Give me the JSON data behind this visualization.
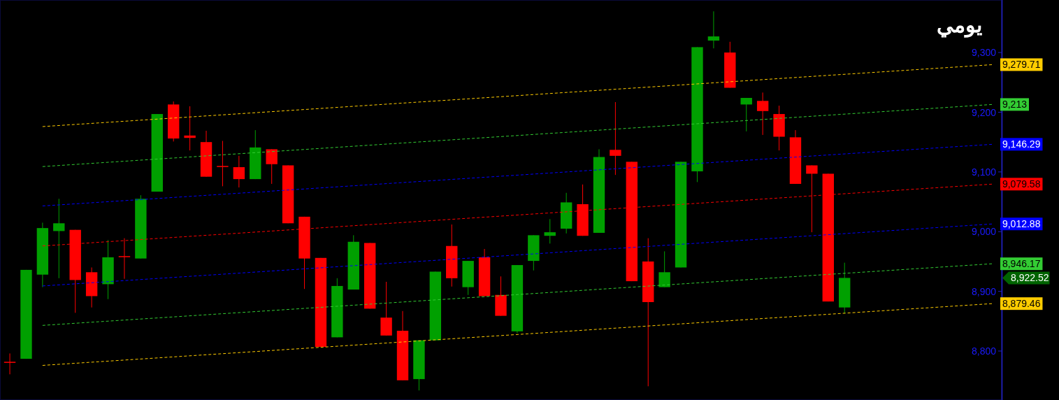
{
  "chart_data": {
    "type": "candlestick",
    "title": "يومي",
    "categories": [
      null,
      null,
      null,
      null,
      null,
      null,
      null,
      null,
      null,
      null,
      null,
      null,
      null,
      null,
      null,
      null,
      null,
      null,
      null,
      null,
      null,
      null,
      null,
      null,
      null,
      null,
      null,
      null,
      null,
      null,
      null,
      null,
      null,
      null,
      null,
      null,
      null,
      null,
      null,
      null,
      null,
      null,
      null,
      null,
      null,
      null,
      null,
      null,
      null,
      null,
      null,
      null,
      null,
      null,
      null,
      null,
      null,
      null,
      null,
      null,
      null
    ],
    "ohlc": [
      [
        8782,
        8796,
        8761,
        8782
      ],
      [
        8787,
        8936,
        8787,
        8936
      ],
      [
        8928,
        9015,
        8907,
        9006
      ],
      [
        9001,
        9055,
        8922,
        9014
      ],
      [
        9003,
        9003,
        8864,
        8919
      ],
      [
        8932,
        8940,
        8873,
        8892
      ],
      [
        8912,
        8986,
        8887,
        8957
      ],
      [
        8959,
        8989,
        8921,
        8959
      ],
      [
        8955,
        9061,
        8955,
        9055
      ],
      [
        9067,
        9197,
        9067,
        9197
      ],
      [
        9213,
        9218,
        9151,
        9156
      ],
      [
        9161,
        9210,
        9136,
        9157
      ],
      [
        9150,
        9169,
        9092,
        9092
      ],
      [
        9110,
        9152,
        9076,
        9110
      ],
      [
        9108,
        9127,
        9074,
        9088
      ],
      [
        9088,
        9170,
        9088,
        9141
      ],
      [
        9138,
        9138,
        9080,
        9113
      ],
      [
        9111,
        9111,
        9014,
        9014
      ],
      [
        9025,
        9025,
        8904,
        8955
      ],
      [
        8956,
        8956,
        8807,
        8807
      ],
      [
        8823,
        8922,
        8823,
        8909
      ],
      [
        8903,
        8994,
        8903,
        8983
      ],
      [
        8981,
        8981,
        8871,
        8871
      ],
      [
        8856,
        8916,
        8826,
        8826
      ],
      [
        8834,
        8867,
        8751,
        8751
      ],
      [
        8753,
        8818,
        8734,
        8818
      ],
      [
        8818,
        8933,
        8818,
        8933
      ],
      [
        8976,
        9012,
        8908,
        8922
      ],
      [
        8907,
        8951,
        8894,
        8951
      ],
      [
        8957,
        8971,
        8892,
        8892
      ],
      [
        8894,
        8925,
        8859,
        8859
      ],
      [
        8833,
        8944,
        8830,
        8944
      ],
      [
        8951,
        8994,
        8935,
        8994
      ],
      [
        8993,
        9021,
        8980,
        8999
      ],
      [
        9005,
        9065,
        8997,
        9049
      ],
      [
        9046,
        9079,
        8993,
        8993
      ],
      [
        8998,
        9138,
        8998,
        9125
      ],
      [
        9137,
        9217,
        9095,
        9127
      ],
      [
        9117,
        9117,
        8917,
        8917
      ],
      [
        8950,
        8989,
        8741,
        8882
      ],
      [
        8907,
        8967,
        8907,
        8932
      ],
      [
        8940,
        9117,
        8940,
        9117
      ],
      [
        9101,
        9309,
        9083,
        9309
      ],
      [
        9320,
        9369,
        9307,
        9327
      ],
      [
        9300,
        9318,
        9241,
        9241
      ],
      [
        9213,
        9224,
        9168,
        9224
      ],
      [
        9219,
        9233,
        9162,
        9202
      ],
      [
        9197,
        9211,
        9136,
        9159
      ],
      [
        9158,
        9170,
        9080,
        9080
      ],
      [
        9111,
        9111,
        8999,
        9097
      ],
      [
        9097,
        9097,
        8883,
        8883
      ],
      [
        8873,
        8948,
        8863,
        8922.52
      ],
      null,
      null,
      null,
      null,
      null,
      null,
      null,
      null,
      null
    ],
    "colors": [
      "#ff0000",
      "#00a000",
      "#00a000",
      "#00a000",
      "#ff0000",
      "#ff0000",
      "#00a000",
      "#ff0000",
      "#00a000",
      "#00a000",
      "#ff0000",
      "#ff0000",
      "#ff0000",
      "#ff0000",
      "#ff0000",
      "#00a000",
      "#ff0000",
      "#ff0000",
      "#ff0000",
      "#ff0000",
      "#00a000",
      "#00a000",
      "#ff0000",
      "#ff0000",
      "#ff0000",
      "#00a000",
      "#00a000",
      "#ff0000",
      "#00a000",
      "#ff0000",
      "#ff0000",
      "#00a000",
      "#00a000",
      "#00a000",
      "#00a000",
      "#ff0000",
      "#00a000",
      "#ff0000",
      "#ff0000",
      "#ff0000",
      "#00a000",
      "#00a000",
      "#00a000",
      "#00a000",
      "#ff0000",
      "#00a000",
      "#ff0000",
      "#ff0000",
      "#ff0000",
      "#ff0000",
      "#ff0000",
      "#00a000",
      null,
      null,
      null,
      null,
      null,
      null,
      null,
      null,
      null
    ],
    "series": [
      {
        "type": "line",
        "color": "#ffcc00",
        "values": [
          null,
          null,
          9176,
          null,
          null,
          null,
          null,
          null,
          null,
          null,
          null,
          null,
          null,
          null,
          null,
          null,
          null,
          null,
          null,
          null,
          null,
          null,
          null,
          null,
          null,
          null,
          null,
          null,
          null,
          null,
          null,
          null,
          null,
          null,
          null,
          null,
          null,
          null,
          null,
          null,
          null,
          null,
          null,
          null,
          null,
          null,
          null,
          null,
          null,
          null,
          null,
          null,
          null,
          null,
          null,
          null,
          null,
          null,
          null,
          null,
          9279.71
        ],
        "value_labels": [
          null,
          null,
          null,
          null,
          null,
          null,
          null,
          null,
          null,
          null,
          null,
          null,
          null,
          null,
          null,
          null,
          null,
          null,
          null,
          null,
          null,
          null,
          null,
          null,
          null,
          null,
          null,
          null,
          null,
          null,
          null,
          null,
          null,
          null,
          null,
          null,
          null,
          null,
          null,
          null,
          null,
          null,
          null,
          null,
          null,
          null,
          null,
          null,
          null,
          null,
          null,
          null,
          null,
          null,
          null,
          null,
          null,
          null,
          null,
          null,
          "9,279.71"
        ]
      },
      {
        "type": "line",
        "color": "#33cc33",
        "values": [
          null,
          null,
          9109,
          null,
          null,
          null,
          null,
          null,
          null,
          null,
          null,
          null,
          null,
          null,
          null,
          null,
          null,
          null,
          null,
          null,
          null,
          null,
          null,
          null,
          null,
          null,
          null,
          null,
          null,
          null,
          null,
          null,
          null,
          null,
          null,
          null,
          null,
          null,
          null,
          null,
          null,
          null,
          null,
          null,
          null,
          null,
          null,
          null,
          null,
          null,
          null,
          null,
          null,
          null,
          null,
          null,
          null,
          null,
          null,
          null,
          9213
        ],
        "value_labels": [
          null,
          null,
          null,
          null,
          null,
          null,
          null,
          null,
          null,
          null,
          null,
          null,
          null,
          null,
          null,
          null,
          null,
          null,
          null,
          null,
          null,
          null,
          null,
          null,
          null,
          null,
          null,
          null,
          null,
          null,
          null,
          null,
          null,
          null,
          null,
          null,
          null,
          null,
          null,
          null,
          null,
          null,
          null,
          null,
          null,
          null,
          null,
          null,
          null,
          null,
          null,
          null,
          null,
          null,
          null,
          null,
          null,
          null,
          null,
          null,
          "9,213"
        ]
      },
      {
        "type": "line",
        "color": "#0000ff",
        "values": [
          null,
          null,
          9043,
          null,
          null,
          null,
          null,
          null,
          null,
          null,
          null,
          null,
          null,
          null,
          null,
          null,
          null,
          null,
          null,
          null,
          null,
          null,
          null,
          null,
          null,
          null,
          null,
          null,
          null,
          null,
          null,
          null,
          null,
          null,
          null,
          null,
          null,
          null,
          null,
          null,
          null,
          null,
          null,
          null,
          null,
          null,
          null,
          null,
          null,
          null,
          null,
          null,
          null,
          null,
          null,
          null,
          null,
          null,
          null,
          null,
          9146.29
        ],
        "value_labels": [
          null,
          null,
          null,
          null,
          null,
          null,
          null,
          null,
          null,
          null,
          null,
          null,
          null,
          null,
          null,
          null,
          null,
          null,
          null,
          null,
          null,
          null,
          null,
          null,
          null,
          null,
          null,
          null,
          null,
          null,
          null,
          null,
          null,
          null,
          null,
          null,
          null,
          null,
          null,
          null,
          null,
          null,
          null,
          null,
          null,
          null,
          null,
          null,
          null,
          null,
          null,
          null,
          null,
          null,
          null,
          null,
          null,
          null,
          null,
          null,
          "9,146.29"
        ]
      },
      {
        "type": "line",
        "color": "#ff0000",
        "values": [
          null,
          null,
          8976,
          null,
          null,
          null,
          null,
          null,
          null,
          null,
          null,
          null,
          null,
          null,
          null,
          null,
          null,
          null,
          null,
          null,
          null,
          null,
          null,
          null,
          null,
          null,
          null,
          null,
          null,
          null,
          null,
          null,
          null,
          null,
          null,
          null,
          null,
          null,
          null,
          null,
          null,
          null,
          null,
          null,
          null,
          null,
          null,
          null,
          null,
          null,
          null,
          null,
          null,
          null,
          null,
          null,
          null,
          null,
          null,
          null,
          9079.58
        ],
        "value_labels": [
          null,
          null,
          null,
          null,
          null,
          null,
          null,
          null,
          null,
          null,
          null,
          null,
          null,
          null,
          null,
          null,
          null,
          null,
          null,
          null,
          null,
          null,
          null,
          null,
          null,
          null,
          null,
          null,
          null,
          null,
          null,
          null,
          null,
          null,
          null,
          null,
          null,
          null,
          null,
          null,
          null,
          null,
          null,
          null,
          null,
          null,
          null,
          null,
          null,
          null,
          null,
          null,
          null,
          null,
          null,
          null,
          null,
          null,
          null,
          null,
          "9,079.58"
        ]
      },
      {
        "type": "line",
        "color": "#0000ff",
        "values": [
          null,
          null,
          8909,
          null,
          null,
          null,
          null,
          null,
          null,
          null,
          null,
          null,
          null,
          null,
          null,
          null,
          null,
          null,
          null,
          null,
          null,
          null,
          null,
          null,
          null,
          null,
          null,
          null,
          null,
          null,
          null,
          null,
          null,
          null,
          null,
          null,
          null,
          null,
          null,
          null,
          null,
          null,
          null,
          null,
          null,
          null,
          null,
          null,
          null,
          null,
          null,
          null,
          null,
          null,
          null,
          null,
          null,
          null,
          null,
          null,
          9012.88
        ],
        "value_labels": [
          null,
          null,
          null,
          null,
          null,
          null,
          null,
          null,
          null,
          null,
          null,
          null,
          null,
          null,
          null,
          null,
          null,
          null,
          null,
          null,
          null,
          null,
          null,
          null,
          null,
          null,
          null,
          null,
          null,
          null,
          null,
          null,
          null,
          null,
          null,
          null,
          null,
          null,
          null,
          null,
          null,
          null,
          null,
          null,
          null,
          null,
          null,
          null,
          null,
          null,
          null,
          null,
          null,
          null,
          null,
          null,
          null,
          null,
          null,
          null,
          "9,012.88"
        ]
      },
      {
        "type": "line",
        "color": "#33cc33",
        "values": [
          null,
          null,
          8843,
          null,
          null,
          null,
          null,
          null,
          null,
          null,
          null,
          null,
          null,
          null,
          null,
          null,
          null,
          null,
          null,
          null,
          null,
          null,
          null,
          null,
          null,
          null,
          null,
          null,
          null,
          null,
          null,
          null,
          null,
          null,
          null,
          null,
          null,
          null,
          null,
          null,
          null,
          null,
          null,
          null,
          null,
          null,
          null,
          null,
          null,
          null,
          null,
          null,
          null,
          null,
          null,
          null,
          null,
          null,
          null,
          null,
          8946.17
        ],
        "value_labels": [
          null,
          null,
          null,
          null,
          null,
          null,
          null,
          null,
          null,
          null,
          null,
          null,
          null,
          null,
          null,
          null,
          null,
          null,
          null,
          null,
          null,
          null,
          null,
          null,
          null,
          null,
          null,
          null,
          null,
          null,
          null,
          null,
          null,
          null,
          null,
          null,
          null,
          null,
          null,
          null,
          null,
          null,
          null,
          null,
          null,
          null,
          null,
          null,
          null,
          null,
          null,
          null,
          null,
          null,
          null,
          null,
          null,
          null,
          null,
          null,
          "8,946.17"
        ]
      },
      {
        "type": "line",
        "color": "#ffcc00",
        "values": [
          null,
          null,
          8776,
          null,
          null,
          null,
          null,
          null,
          null,
          null,
          null,
          null,
          null,
          null,
          null,
          null,
          null,
          null,
          null,
          null,
          null,
          null,
          null,
          null,
          null,
          null,
          null,
          null,
          null,
          null,
          null,
          null,
          null,
          null,
          null,
          null,
          null,
          null,
          null,
          null,
          null,
          null,
          null,
          null,
          null,
          null,
          null,
          null,
          null,
          null,
          null,
          null,
          null,
          null,
          null,
          null,
          null,
          null,
          null,
          null,
          8879.46
        ],
        "value_labels": [
          null,
          null,
          null,
          null,
          null,
          null,
          null,
          null,
          null,
          null,
          null,
          null,
          null,
          null,
          null,
          null,
          null,
          null,
          null,
          null,
          null,
          null,
          null,
          null,
          null,
          null,
          null,
          null,
          null,
          null,
          null,
          null,
          null,
          null,
          null,
          null,
          null,
          null,
          null,
          null,
          null,
          null,
          null,
          null,
          null,
          null,
          null,
          null,
          null,
          null,
          null,
          null,
          null,
          null,
          null,
          null,
          null,
          null,
          null,
          null,
          "8,879.46"
        ]
      }
    ],
    "line_style": "dashed",
    "annotations": [
      "8,922.52"
    ],
    "ylim": [
      8718,
      9388
    ],
    "yticks": [
      {
        "value": 8800,
        "label": "8,800"
      },
      {
        "value": 8900,
        "label": "8,900"
      },
      {
        "value": 9000,
        "label": "9,000"
      },
      {
        "value": 9100,
        "label": "9,100"
      },
      {
        "value": 9200,
        "label": "9,200"
      },
      {
        "value": 9300,
        "label": "9,300"
      }
    ],
    "tick_labels": "y",
    "grid": false
  }
}
